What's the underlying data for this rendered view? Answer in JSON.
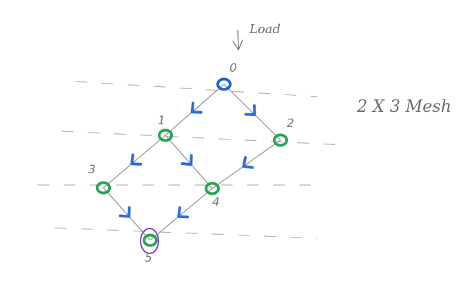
{
  "diagram": {
    "load_label": "Load",
    "mesh_label": "2 X 3 Mesh",
    "nodes": [
      {
        "id": "0",
        "color": "#1f63c6"
      },
      {
        "id": "1",
        "color": "#27a554"
      },
      {
        "id": "2",
        "color": "#27a554"
      },
      {
        "id": "3",
        "color": "#27a554"
      },
      {
        "id": "4",
        "color": "#27a554"
      },
      {
        "id": "5",
        "color": "#27a554",
        "highlight_color": "#8a3fc7"
      }
    ],
    "edges": [
      {
        "from": "0",
        "to": "1",
        "arrow_color": "#2b6fe0"
      },
      {
        "from": "0",
        "to": "2",
        "arrow_color": "#2b6fe0"
      },
      {
        "from": "1",
        "to": "3",
        "arrow_color": "#2b6fe0"
      },
      {
        "from": "1",
        "to": "4",
        "arrow_color": "#2b6fe0"
      },
      {
        "from": "2",
        "to": "4",
        "arrow_color": "#2b6fe0"
      },
      {
        "from": "3",
        "to": "5",
        "arrow_color": "#2b6fe0"
      },
      {
        "from": "4",
        "to": "5",
        "arrow_color": "#2b6fe0"
      }
    ],
    "edge_color": "#9a9a9a",
    "dash_color": "#b3b3b3"
  }
}
